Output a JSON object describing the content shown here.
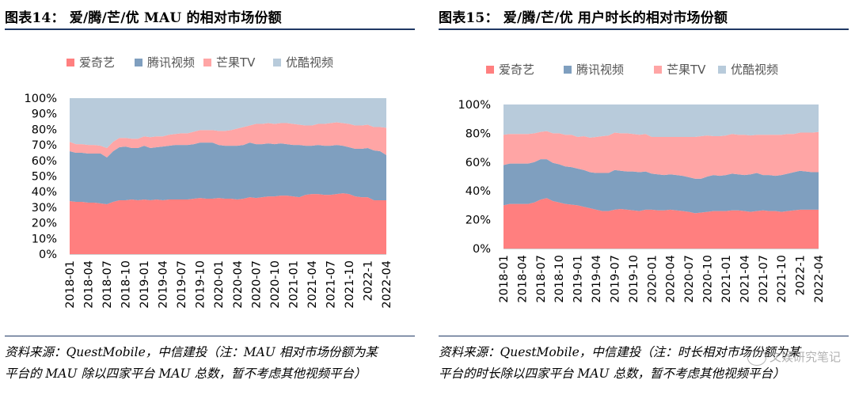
{
  "chart_data": [
    {
      "type": "area",
      "stacked": true,
      "percent": true,
      "title": "图表14：  爱/腾/芒/优 MAU 的相对市场份额",
      "categories": [
        "2018-01",
        "2018-04",
        "2018-07",
        "2018-10",
        "2019-01",
        "2019-04",
        "2019-07",
        "2019-10",
        "2020-01",
        "2020-04",
        "2020-07",
        "2020-10",
        "2021-01",
        "2021-04",
        "2021-07",
        "2021-10",
        "2022-1",
        "2022-04"
      ],
      "x": [
        "2018-01",
        "2018-02",
        "2018-03",
        "2018-04",
        "2018-05",
        "2018-06",
        "2018-07",
        "2018-08",
        "2018-09",
        "2018-10",
        "2018-11",
        "2018-12",
        "2019-01",
        "2019-02",
        "2019-03",
        "2019-04",
        "2019-05",
        "2019-06",
        "2019-07",
        "2019-08",
        "2019-09",
        "2019-10",
        "2019-11",
        "2019-12",
        "2020-01",
        "2020-02",
        "2020-03",
        "2020-04",
        "2020-05",
        "2020-06",
        "2020-07",
        "2020-08",
        "2020-09",
        "2020-10",
        "2020-11",
        "2020-12",
        "2021-01",
        "2021-02",
        "2021-03",
        "2021-04",
        "2021-05",
        "2021-06",
        "2021-07",
        "2021-08",
        "2021-09",
        "2021-10",
        "2021-11",
        "2021-12",
        "2022-01",
        "2022-02",
        "2022-03",
        "2022-04"
      ],
      "series": [
        {
          "name": "爱奇艺",
          "color": "#ff7f7f",
          "values": [
            34,
            33.5,
            33.5,
            33,
            33,
            32.5,
            32,
            33.5,
            34.5,
            34.5,
            35,
            34.5,
            35,
            34.5,
            35,
            34.5,
            35,
            35,
            35,
            35,
            35.5,
            36,
            35.5,
            35.5,
            36,
            35.5,
            35.5,
            35,
            35.5,
            36.5,
            36,
            36.5,
            37,
            37,
            37.5,
            37.5,
            37,
            36.5,
            38,
            38.5,
            38.5,
            38,
            38,
            38.5,
            39,
            38.5,
            37,
            36.5,
            36.5,
            34.5,
            34.5,
            34.5
          ]
        },
        {
          "name": "腾讯视频",
          "color": "#7f9fbf",
          "values": [
            32,
            31.5,
            31.5,
            31.5,
            31.5,
            32,
            30,
            32.5,
            34,
            34.5,
            33,
            33.5,
            34.5,
            33.5,
            33.5,
            34.5,
            34.5,
            35,
            35,
            35,
            35,
            35.5,
            36,
            36,
            34,
            34,
            34,
            34.5,
            34.5,
            35,
            34.5,
            34,
            34,
            33.5,
            33.5,
            33,
            33,
            33.5,
            31.5,
            31,
            31.5,
            31.5,
            31.5,
            31.5,
            30.5,
            30,
            30.5,
            31,
            31.5,
            32,
            31.5,
            29
          ]
        },
        {
          "name": "芒果TV",
          "color": "#ffa5a5",
          "values": [
            6,
            5.5,
            5.5,
            5.5,
            5.5,
            5,
            6,
            6,
            6,
            5.5,
            6,
            6,
            6,
            7,
            7,
            6.5,
            7,
            7,
            7.5,
            7.5,
            8,
            8,
            8,
            8,
            9,
            9.5,
            10,
            11,
            11.5,
            11,
            13,
            13,
            13,
            13,
            13,
            13.5,
            13.5,
            13,
            13,
            13,
            13.5,
            14,
            14.5,
            14.5,
            14.5,
            15,
            15,
            15,
            15,
            15,
            15.5,
            17.5
          ]
        },
        {
          "name": "优酷视频",
          "color": "#b8cbdb",
          "values": [
            28,
            29.5,
            29.5,
            30,
            30,
            30.5,
            32,
            28,
            25.5,
            25.5,
            26,
            26,
            24.5,
            25,
            24.5,
            24.5,
            23.5,
            23,
            22.5,
            22.5,
            21.5,
            20.5,
            20.5,
            20.5,
            21,
            21,
            20.5,
            19.5,
            18.5,
            17.5,
            16.5,
            16.5,
            16,
            16.5,
            16,
            16,
            16.5,
            17,
            17.5,
            17.5,
            16.5,
            16.5,
            16,
            15.5,
            16,
            16.5,
            17.5,
            17.5,
            17,
            18.5,
            18.5,
            19
          ]
        }
      ],
      "yticks": [
        "0%",
        "10%",
        "20%",
        "30%",
        "40%",
        "50%",
        "60%",
        "70%",
        "80%",
        "90%",
        "100%"
      ],
      "ylim": [
        0,
        100
      ],
      "legend": "top",
      "source": [
        "资料来源：QuestMobile，中信建投（注：MAU 相对市场份额为某",
        "平台的 MAU 除以四家平台 MAU 总数，暂不考虑其他视频平台）"
      ]
    },
    {
      "type": "area",
      "stacked": true,
      "percent": true,
      "title": "图表15：  爱/腾/芒/优  用户时长的相对市场份额",
      "categories": [
        "2018-01",
        "2018-04",
        "2018-07",
        "2018-10",
        "2019-01",
        "2019-04",
        "2019-07",
        "2019-10",
        "2020-01",
        "2020-04",
        "2020-07",
        "2020-10",
        "2021-01",
        "2021-04",
        "2021-07",
        "2021-10",
        "2022-1",
        "2022-04"
      ],
      "x": [
        "2018-01",
        "2018-02",
        "2018-03",
        "2018-04",
        "2018-05",
        "2018-06",
        "2018-07",
        "2018-08",
        "2018-09",
        "2018-10",
        "2018-11",
        "2018-12",
        "2019-01",
        "2019-02",
        "2019-03",
        "2019-04",
        "2019-05",
        "2019-06",
        "2019-07",
        "2019-08",
        "2019-09",
        "2019-10",
        "2019-11",
        "2019-12",
        "2020-01",
        "2020-02",
        "2020-03",
        "2020-04",
        "2020-05",
        "2020-06",
        "2020-07",
        "2020-08",
        "2020-09",
        "2020-10",
        "2020-11",
        "2020-12",
        "2021-01",
        "2021-02",
        "2021-03",
        "2021-04",
        "2021-05",
        "2021-06",
        "2021-07",
        "2021-08",
        "2021-09",
        "2021-10",
        "2021-11",
        "2021-12",
        "2022-01",
        "2022-02",
        "2022-03",
        "2022-04"
      ],
      "series": [
        {
          "name": "爱奇艺",
          "color": "#ff7f7f",
          "values": [
            30,
            31,
            31,
            31,
            31,
            32,
            34,
            35,
            33,
            32,
            31,
            30.5,
            30,
            29,
            28,
            27,
            26,
            26,
            27,
            27.5,
            27,
            26.5,
            26,
            27,
            27,
            26.5,
            26.5,
            27,
            26.5,
            26,
            25.5,
            24.5,
            25,
            25.5,
            26,
            26,
            26,
            26.5,
            26.5,
            26,
            25.5,
            26,
            26.5,
            26,
            26,
            25.5,
            26,
            26.5,
            27,
            27,
            27,
            27
          ]
        },
        {
          "name": "腾讯视频",
          "color": "#7f9fbf",
          "values": [
            28,
            28,
            28,
            28,
            28,
            28,
            28,
            27,
            26.5,
            26.5,
            26,
            26,
            25.5,
            25.5,
            25,
            25.5,
            26.5,
            26.5,
            27.5,
            26.5,
            26.5,
            27,
            27,
            26.5,
            25,
            25,
            24.5,
            24.5,
            24.5,
            24.5,
            24,
            24,
            23.5,
            24.5,
            25,
            24.5,
            25,
            25.5,
            25,
            25,
            26,
            26.5,
            24.5,
            25,
            24.5,
            25.5,
            26,
            26.5,
            27,
            26.5,
            26,
            26
          ]
        },
        {
          "name": "芒果TV",
          "color": "#ffa5a5",
          "values": [
            21,
            20.5,
            20.5,
            20.5,
            20.5,
            20,
            19,
            19.5,
            20.5,
            21.5,
            22,
            22.5,
            22,
            23.5,
            24,
            25,
            25.5,
            26,
            26,
            26,
            26.5,
            26,
            26,
            26,
            25.5,
            26,
            26.5,
            26,
            26.5,
            27,
            28,
            29,
            29.5,
            28.5,
            27,
            27.5,
            27.5,
            27.5,
            27.5,
            28,
            27,
            26.5,
            28,
            28,
            28.5,
            28,
            27.5,
            26.5,
            26.5,
            27,
            27.5,
            28
          ]
        },
        {
          "name": "优酷视频",
          "color": "#b8cbdb",
          "values": [
            21,
            20.5,
            20.5,
            20.5,
            20.5,
            20,
            19,
            18.5,
            20,
            20,
            21,
            21,
            22.5,
            22,
            23,
            22.5,
            22,
            21.5,
            19.5,
            20,
            20,
            20.5,
            21,
            20.5,
            22.5,
            22.5,
            22.5,
            22.5,
            22.5,
            22.5,
            22.5,
            22.5,
            22,
            21.5,
            22,
            22,
            21.5,
            20.5,
            21,
            21,
            21.5,
            21,
            21,
            21,
            21,
            21,
            20.5,
            20.5,
            19.5,
            19.5,
            19.5,
            19
          ]
        }
      ],
      "yticks": [
        "0%",
        "20%",
        "40%",
        "60%",
        "80%",
        "100%"
      ],
      "ylim": [
        0,
        100
      ],
      "legend": "top",
      "source": [
        "资料来源：QuestMobile，中信建投（注：时长相对市场份额为某",
        "平台的时长除以四家平台 MAU 总数，暂不考虑其他视频平台）"
      ]
    }
  ],
  "watermark": "文娱研究笔记"
}
